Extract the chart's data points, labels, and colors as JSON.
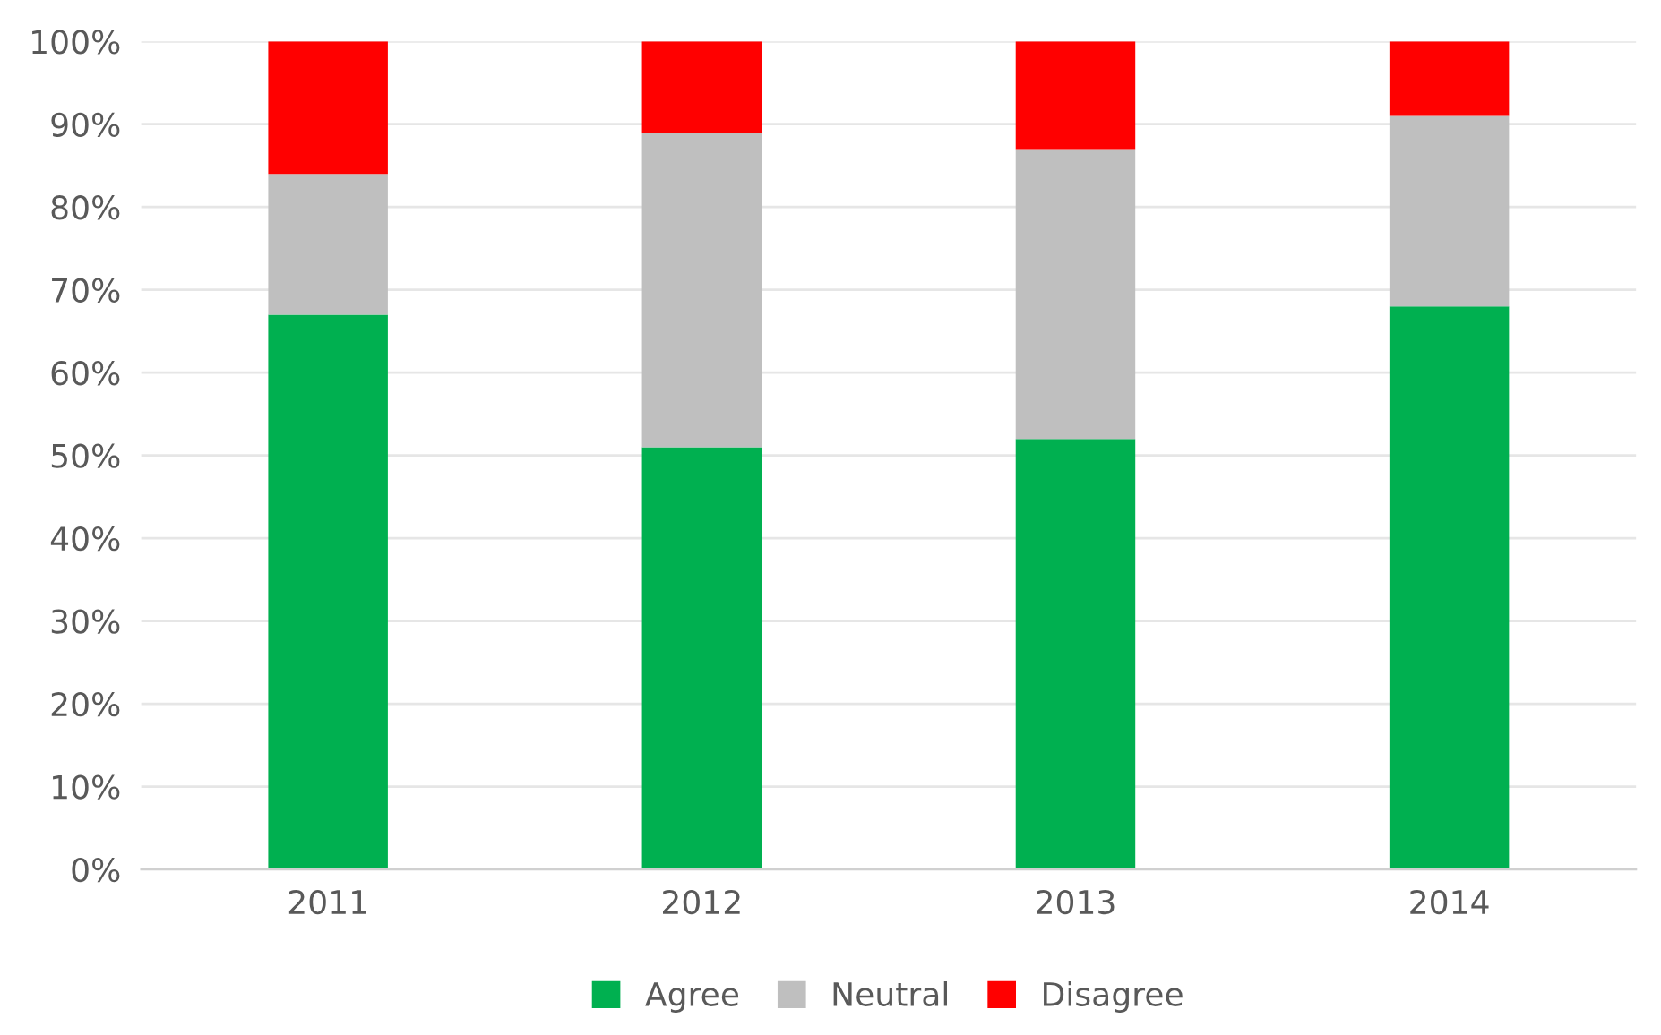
{
  "chart_data": {
    "type": "bar",
    "stacked": true,
    "categories": [
      "2011",
      "2012",
      "2013",
      "2014"
    ],
    "series": [
      {
        "name": "Agree",
        "color": "#00b050",
        "values": [
          67,
          51,
          52,
          68
        ]
      },
      {
        "name": "Neutral",
        "color": "#bfbfbf",
        "values": [
          17,
          38,
          35,
          23
        ]
      },
      {
        "name": "Disagree",
        "color": "#ff0000",
        "values": [
          16,
          11,
          13,
          9
        ]
      }
    ],
    "ylim": [
      0,
      100
    ],
    "yticks": [
      {
        "value": 0,
        "label": "0%"
      },
      {
        "value": 10,
        "label": "10%"
      },
      {
        "value": 20,
        "label": "20%"
      },
      {
        "value": 30,
        "label": "30%"
      },
      {
        "value": 40,
        "label": "40%"
      },
      {
        "value": 50,
        "label": "50%"
      },
      {
        "value": 60,
        "label": "60%"
      },
      {
        "value": 70,
        "label": "70%"
      },
      {
        "value": 80,
        "label": "80%"
      },
      {
        "value": 90,
        "label": "90%"
      },
      {
        "value": 100,
        "label": "100%"
      }
    ],
    "grid": "y",
    "legend": "bottom"
  }
}
